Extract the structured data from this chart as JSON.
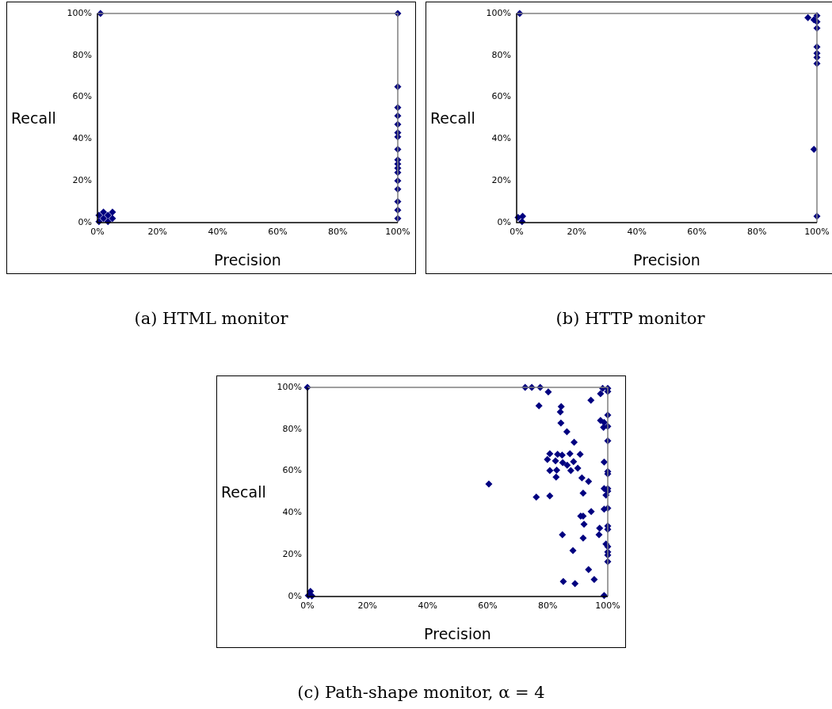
{
  "chart_data": [
    {
      "type": "scatter",
      "title": "(a) HTML monitor",
      "xlabel": "Precision",
      "ylabel": "Recall",
      "marker": "diamond",
      "grid": false,
      "legend": false,
      "xlim": [
        0,
        100
      ],
      "ylim": [
        0,
        100
      ],
      "xticks": [
        {
          "value": 0,
          "label": "0%"
        },
        {
          "value": 20,
          "label": "20%"
        },
        {
          "value": 40,
          "label": "40%"
        },
        {
          "value": 60,
          "label": "60%"
        },
        {
          "value": 80,
          "label": "80%"
        },
        {
          "value": 100,
          "label": "100%"
        }
      ],
      "yticks": [
        {
          "value": 0,
          "label": "0%"
        },
        {
          "value": 20,
          "label": "20%"
        },
        {
          "value": 40,
          "label": "40%"
        },
        {
          "value": 60,
          "label": "60%"
        },
        {
          "value": 80,
          "label": "80%"
        },
        {
          "value": 100,
          "label": "100%"
        }
      ],
      "series": [
        {
          "color": "#000080",
          "x": [
            1,
            100,
            100,
            100,
            100,
            100,
            100,
            100,
            100,
            100,
            100,
            100,
            100,
            100,
            100,
            100,
            100,
            100,
            0.5,
            2,
            3.5,
            5,
            0.5,
            3.5,
            2,
            5
          ],
          "values": [
            100,
            100,
            65,
            55,
            51,
            47,
            43,
            41,
            35,
            30,
            28,
            26,
            24,
            20,
            16,
            10,
            6,
            2,
            0.5,
            2,
            0.5,
            2,
            3.5,
            3.5,
            5,
            5
          ]
        }
      ]
    },
    {
      "type": "scatter",
      "title": "(b) HTTP monitor",
      "xlabel": "Precision",
      "ylabel": "Recall",
      "marker": "diamond",
      "grid": false,
      "legend": false,
      "xlim": [
        0,
        100
      ],
      "ylim": [
        0,
        100
      ],
      "xticks": [
        {
          "value": 0,
          "label": "0%"
        },
        {
          "value": 20,
          "label": "20%"
        },
        {
          "value": 40,
          "label": "40%"
        },
        {
          "value": 60,
          "label": "60%"
        },
        {
          "value": 80,
          "label": "80%"
        },
        {
          "value": 100,
          "label": "100%"
        }
      ],
      "yticks": [
        {
          "value": 0,
          "label": "0%"
        },
        {
          "value": 20,
          "label": "20%"
        },
        {
          "value": 40,
          "label": "40%"
        },
        {
          "value": 60,
          "label": "60%"
        },
        {
          "value": 80,
          "label": "80%"
        },
        {
          "value": 100,
          "label": "100%"
        }
      ],
      "series": [
        {
          "color": "#000080",
          "x": [
            1,
            100,
            99,
            100,
            97,
            100,
            100,
            100,
            100,
            100,
            99,
            100,
            1.8,
            0.5,
            2
          ],
          "values": [
            100,
            99,
            97,
            96,
            98,
            93,
            84,
            81,
            79,
            76,
            35,
            3,
            0.5,
            2.5,
            3
          ]
        }
      ]
    },
    {
      "type": "scatter",
      "title": "(c) Path-shape monitor, α = 4",
      "xlabel": "Precision",
      "ylabel": "Recall",
      "marker": "diamond",
      "grid": false,
      "legend": false,
      "xlim": [
        0,
        100
      ],
      "ylim": [
        0,
        100
      ],
      "xticks": [
        {
          "value": 0,
          "label": "0%"
        },
        {
          "value": 20,
          "label": "20%"
        },
        {
          "value": 40,
          "label": "40%"
        },
        {
          "value": 60,
          "label": "60%"
        },
        {
          "value": 80,
          "label": "80%"
        },
        {
          "value": 100,
          "label": "100%"
        }
      ],
      "yticks": [
        {
          "value": 0,
          "label": "0%"
        },
        {
          "value": 20,
          "label": "20%"
        },
        {
          "value": 40,
          "label": "40%"
        },
        {
          "value": 60,
          "label": "60%"
        },
        {
          "value": 80,
          "label": "80%"
        },
        {
          "value": 100,
          "label": "100%"
        }
      ],
      "series": [
        {
          "color": "#000080",
          "x": [
            0,
            72.5,
            74.7,
            77.5,
            80.2,
            77.1,
            84.5,
            84.2,
            84.4,
            86.4,
            88.8,
            80.7,
            83.3,
            84.8,
            87.4,
            90.8,
            79.9,
            82.6,
            85,
            86.5,
            88.6,
            90,
            80.7,
            83,
            87.7,
            82.8,
            91.4,
            93.6,
            60.4,
            76.2,
            80.7,
            91.8,
            94.5,
            91,
            91.8,
            92.1,
            84.9,
            91.8,
            88.4,
            93.6,
            95.5,
            85.2,
            89.1,
            98.8,
            98.3,
            100,
            97.6,
            100,
            94.4,
            100,
            97.6,
            98.8,
            98.6,
            100,
            100,
            98.8,
            100,
            100,
            98.8,
            100,
            99.4,
            100,
            98.8,
            100,
            100,
            100,
            97.3,
            97.1,
            99.4,
            100,
            100,
            100,
            100,
            0.3,
            1,
            1.5
          ],
          "values": [
            100,
            100,
            100,
            100,
            97.8,
            91.2,
            90.8,
            88.3,
            83,
            78.8,
            73.8,
            68.3,
            68,
            67.6,
            68.3,
            68,
            65.5,
            64.9,
            64,
            62.8,
            64.5,
            61.4,
            60.2,
            60.4,
            60.2,
            57.1,
            56.7,
            55,
            53.8,
            47.5,
            48.1,
            49.4,
            40.6,
            38.4,
            38.4,
            34.6,
            29.5,
            27.9,
            22,
            12.9,
            8.1,
            7.2,
            6.2,
            0.5,
            99.5,
            99.5,
            97,
            98,
            93.8,
            86.7,
            84.2,
            83.2,
            80.9,
            81.3,
            74.4,
            64.3,
            59.8,
            58.6,
            51.6,
            51.6,
            48.5,
            50.4,
            41.8,
            42.2,
            33.7,
            32.1,
            32.7,
            29.5,
            25.1,
            23.9,
            21.3,
            19.8,
            16.7,
            0.5,
            2.5,
            0.3
          ]
        }
      ]
    }
  ]
}
